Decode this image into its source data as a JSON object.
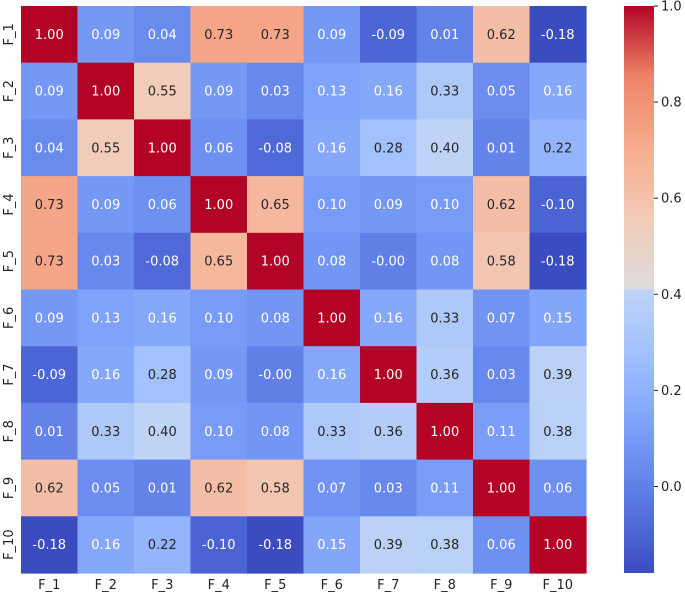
{
  "chart_data": {
    "type": "heatmap",
    "title": "",
    "xlabel": "",
    "ylabel": "",
    "x_labels": [
      "F_1",
      "F_2",
      "F_3",
      "F_4",
      "F_5",
      "F_6",
      "F_7",
      "F_8",
      "F_9",
      "F_10"
    ],
    "y_labels": [
      "F_1",
      "F_2",
      "F_3",
      "F_4",
      "F_5",
      "F_6",
      "F_7",
      "F_8",
      "F_9",
      "F_10"
    ],
    "values": [
      [
        "1.00",
        "0.09",
        "0.04",
        "0.73",
        "0.73",
        "0.09",
        "-0.09",
        "0.01",
        "0.62",
        "-0.18"
      ],
      [
        "0.09",
        "1.00",
        "0.55",
        "0.09",
        "0.03",
        "0.13",
        "0.16",
        "0.33",
        "0.05",
        "0.16"
      ],
      [
        "0.04",
        "0.55",
        "1.00",
        "0.06",
        "-0.08",
        "0.16",
        "0.28",
        "0.40",
        "0.01",
        "0.22"
      ],
      [
        "0.73",
        "0.09",
        "0.06",
        "1.00",
        "0.65",
        "0.10",
        "0.09",
        "0.10",
        "0.62",
        "-0.10"
      ],
      [
        "0.73",
        "0.03",
        "-0.08",
        "0.65",
        "1.00",
        "0.08",
        "-0.00",
        "0.08",
        "0.58",
        "-0.18"
      ],
      [
        "0.09",
        "0.13",
        "0.16",
        "0.10",
        "0.08",
        "1.00",
        "0.16",
        "0.33",
        "0.07",
        "0.15"
      ],
      [
        "-0.09",
        "0.16",
        "0.28",
        "0.09",
        "-0.00",
        "0.16",
        "1.00",
        "0.36",
        "0.03",
        "0.39"
      ],
      [
        "0.01",
        "0.33",
        "0.40",
        "0.10",
        "0.08",
        "0.33",
        "0.36",
        "1.00",
        "0.11",
        "0.38"
      ],
      [
        "0.62",
        "0.05",
        "0.01",
        "0.62",
        "0.58",
        "0.07",
        "0.03",
        "0.11",
        "1.00",
        "0.06"
      ],
      [
        "-0.18",
        "0.16",
        "0.22",
        "-0.10",
        "-0.18",
        "0.15",
        "0.39",
        "0.38",
        "0.06",
        "1.00"
      ]
    ],
    "colorscale": "coolwarm",
    "vmin": -0.18,
    "vmax": 1.0,
    "colorbar_ticks": [
      "0.0",
      "0.2",
      "0.4",
      "0.6",
      "0.8",
      "1.0"
    ],
    "grid": false,
    "legend": "colorbar-right"
  }
}
